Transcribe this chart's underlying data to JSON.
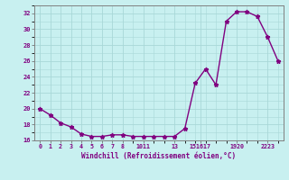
{
  "xlabel": "Windchill (Refroidissement éolien,°C)",
  "bg_color": "#c8f0f0",
  "line_color": "#800080",
  "grid_color": "#a8d8d8",
  "x_values": [
    0,
    1,
    2,
    3,
    4,
    5,
    6,
    7,
    8,
    9,
    10,
    11,
    12,
    13,
    14,
    15,
    16,
    17,
    18,
    19,
    20,
    21,
    22,
    23
  ],
  "y_values": [
    20.0,
    19.2,
    18.2,
    17.7,
    16.8,
    16.5,
    16.5,
    16.7,
    16.7,
    16.5,
    16.5,
    16.5,
    16.5,
    16.5,
    17.5,
    23.2,
    25.0,
    23.0,
    31.0,
    32.2,
    32.2,
    31.6,
    29.0,
    26.0
  ],
  "ylim": [
    16,
    33
  ],
  "xlim": [
    -0.5,
    23.5
  ],
  "yticks": [
    16,
    18,
    20,
    22,
    24,
    26,
    28,
    30,
    32
  ],
  "xtick_positions": [
    0,
    1,
    2,
    3,
    4,
    5,
    6,
    7,
    8,
    10,
    13,
    15.5,
    19,
    22
  ],
  "xtick_labels": [
    "0",
    "1",
    "2",
    "3",
    "4",
    "5",
    "6",
    "7",
    "8",
    "1011",
    "13",
    "151617",
    "1920",
    "2223"
  ],
  "marker": "*",
  "marker_size": 3.5,
  "linewidth": 1.0
}
